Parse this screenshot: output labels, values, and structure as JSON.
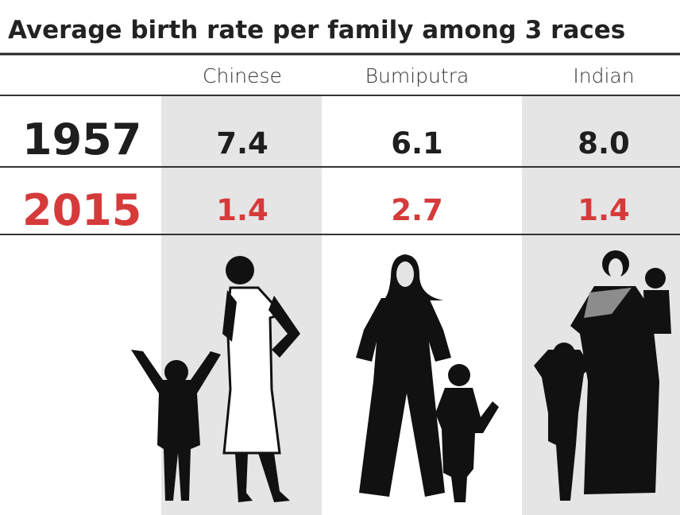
{
  "title": "Average birth rate per family among 3 races",
  "table": {
    "columns": [
      "Chinese",
      "Bumiputra",
      "Indian"
    ],
    "rows": [
      {
        "year": "1957",
        "values": [
          "7.4",
          "6.1",
          "8.0"
        ]
      },
      {
        "year": "2015",
        "values": [
          "1.4",
          "2.7",
          "1.4"
        ]
      }
    ]
  }
}
